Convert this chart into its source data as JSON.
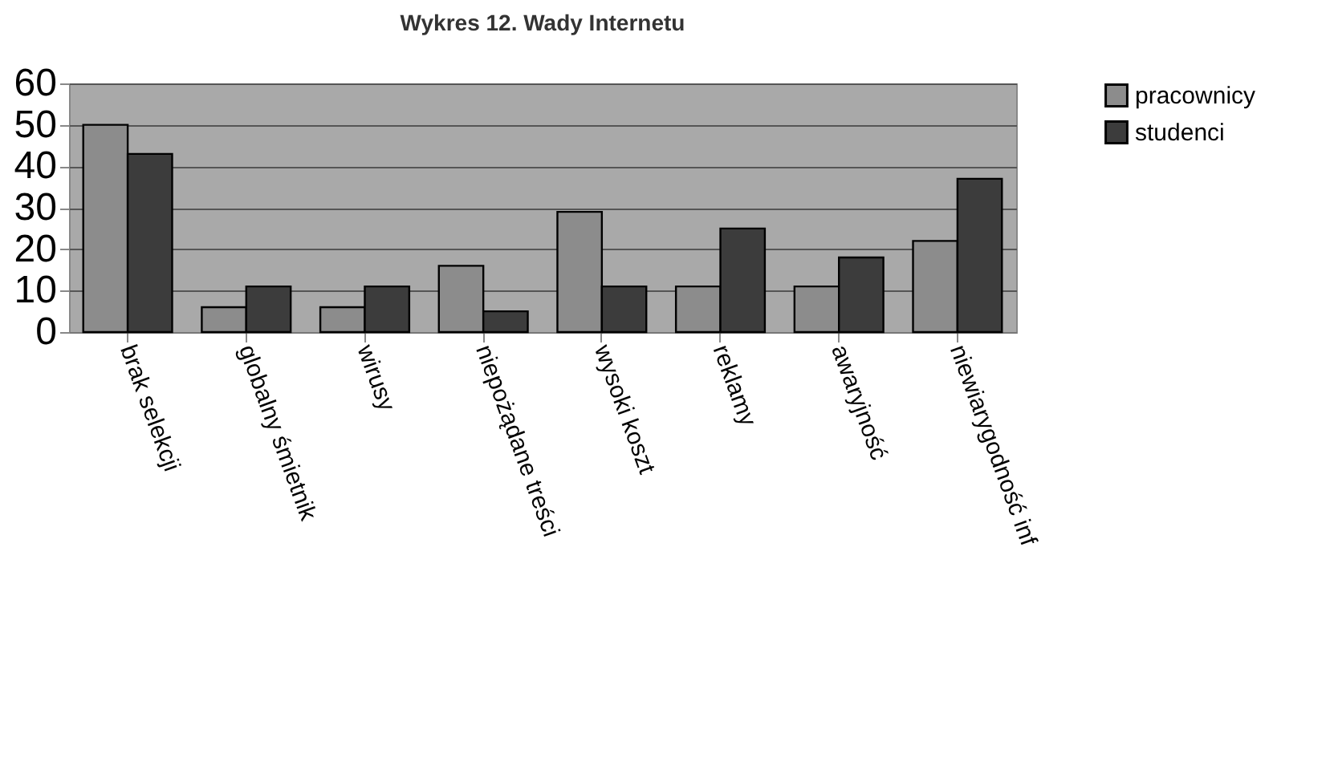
{
  "chart_data": {
    "type": "bar",
    "title": "Wykres 12. Wady Internetu",
    "categories": [
      "brak selekcji",
      "globalny śmietnik",
      "wirusy",
      "niepożądane treści",
      "wysoki koszt",
      "reklamy",
      "awaryjność",
      "niewiarygodność inf"
    ],
    "series": [
      {
        "name": "pracownicy",
        "color": "#8c8c8c",
        "values": [
          50,
          6,
          6,
          16,
          29,
          11,
          11,
          22
        ]
      },
      {
        "name": "studenci",
        "color": "#3c3c3c",
        "values": [
          43,
          11,
          11,
          5,
          11,
          25,
          18,
          37
        ]
      }
    ],
    "ylim": [
      0,
      60
    ],
    "yticks": [
      0,
      10,
      20,
      30,
      40,
      50,
      60
    ],
    "grid": "y",
    "legend": "right"
  }
}
